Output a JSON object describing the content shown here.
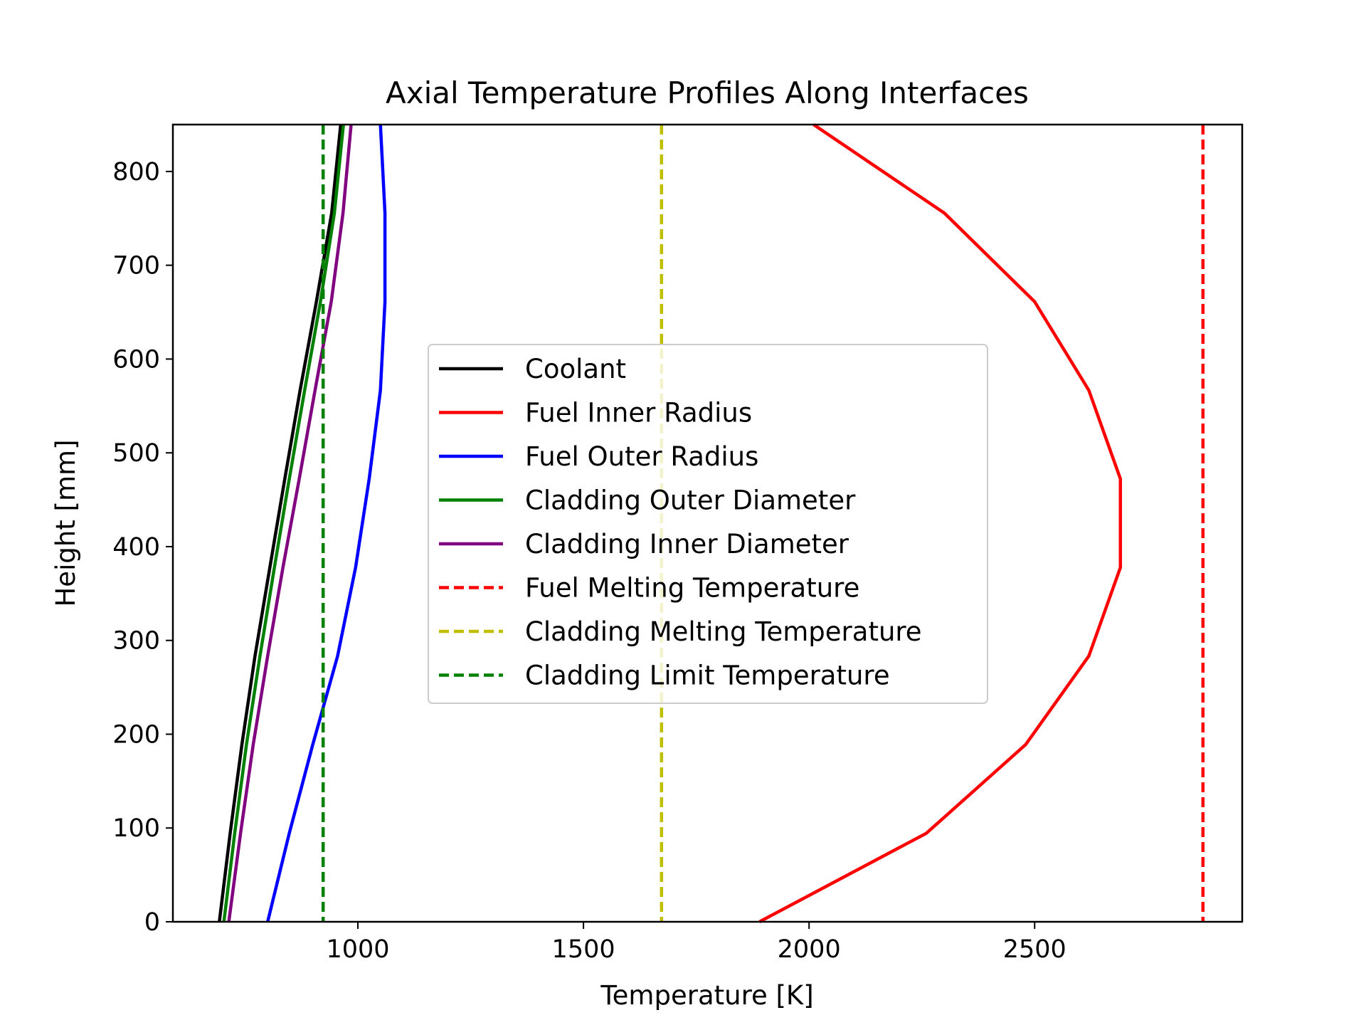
{
  "chart_data": {
    "type": "line",
    "title": "Axial Temperature Profiles Along Interfaces",
    "xlabel": "Temperature [K]",
    "ylabel": "Height [mm]",
    "xlim": [
      590,
      2960
    ],
    "ylim": [
      0,
      850
    ],
    "xticks": [
      1000,
      1500,
      2000,
      2500
    ],
    "yticks": [
      0,
      100,
      200,
      300,
      400,
      500,
      600,
      700,
      800
    ],
    "xtick_labels": [
      "1000",
      "1500",
      "2000",
      "2500"
    ],
    "ytick_labels": [
      "0",
      "100",
      "200",
      "300",
      "400",
      "500",
      "600",
      "700",
      "800"
    ],
    "grid": false,
    "legend_position": "center",
    "y": [
      0,
      94.4,
      188.9,
      283.3,
      377.8,
      472.2,
      566.7,
      661.1,
      755.6,
      850
    ],
    "series": [
      {
        "name": "Coolant",
        "color": "#000000",
        "style": "solid",
        "x": [
          693,
          717,
          743,
          772,
          805,
          838,
          872,
          908,
          942,
          962
        ]
      },
      {
        "name": "Fuel Inner Radius",
        "color": "#ff0000",
        "style": "solid",
        "x": [
          1890,
          2260,
          2480,
          2620,
          2690,
          2690,
          2620,
          2500,
          2300,
          2010
        ]
      },
      {
        "name": "Fuel Outer Radius",
        "color": "#0000ff",
        "style": "solid",
        "x": [
          800,
          848,
          900,
          955,
          995,
          1025,
          1050,
          1060,
          1060,
          1050
        ]
      },
      {
        "name": "Cladding Outer Diameter",
        "color": "#008000",
        "style": "solid",
        "x": [
          703,
          727,
          753,
          783,
          815,
          848,
          882,
          917,
          948,
          968
        ]
      },
      {
        "name": "Cladding Inner Diameter",
        "color": "#800080",
        "style": "solid",
        "x": [
          714,
          740,
          768,
          800,
          834,
          870,
          905,
          941,
          967,
          985
        ]
      },
      {
        "name": "Fuel Melting Temperature",
        "color": "#ff0000",
        "style": "dashed",
        "vline": 2873
      },
      {
        "name": "Cladding Melting Temperature",
        "color": "#bfbf00",
        "style": "dashed",
        "vline": 1673
      },
      {
        "name": "Cladding Limit Temperature",
        "color": "#008000",
        "style": "dashed",
        "vline": 923
      }
    ]
  }
}
